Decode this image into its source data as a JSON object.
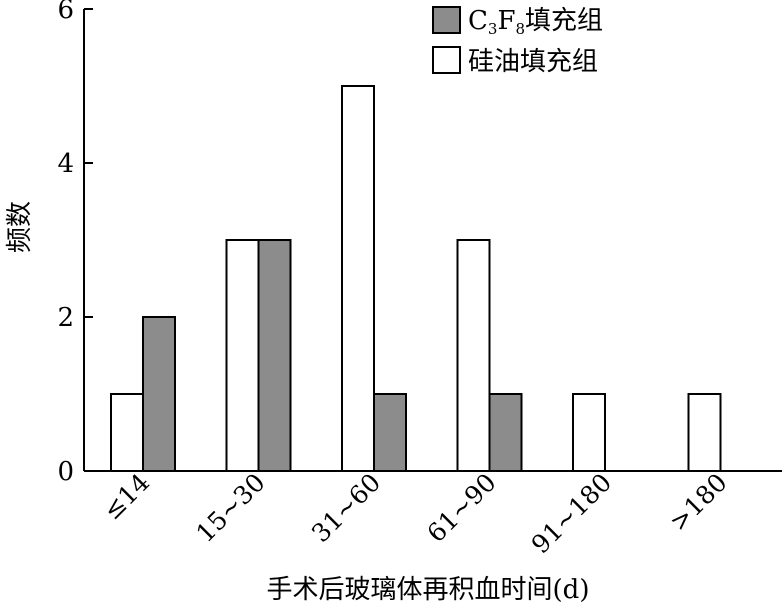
{
  "chart_data": {
    "type": "bar",
    "title": "",
    "xlabel": "手术后玻璃体再积血时间(d)",
    "ylabel": "频数",
    "ylim": [
      0,
      6
    ],
    "yticks": [
      0,
      2,
      4,
      6
    ],
    "categories": [
      "≤14",
      "15~30",
      "31~60",
      "61~90",
      "91~180",
      ">180"
    ],
    "series": [
      {
        "name": "硅油填充组",
        "values": [
          1,
          3,
          5,
          3,
          1,
          1
        ],
        "color": "#ffffff"
      },
      {
        "name": "C3F8填充组",
        "values": [
          2,
          3,
          1,
          1,
          0,
          0
        ],
        "color": "#8c8c8c"
      }
    ],
    "legend": {
      "position": "top-right",
      "c3f8_prefix": "C",
      "c3f8_sub1": "3",
      "c3f8_mid": "F",
      "c3f8_sub2": "8",
      "c3f8_suffix": "填充组",
      "silicone_label": "硅油填充组"
    },
    "grid": false
  }
}
